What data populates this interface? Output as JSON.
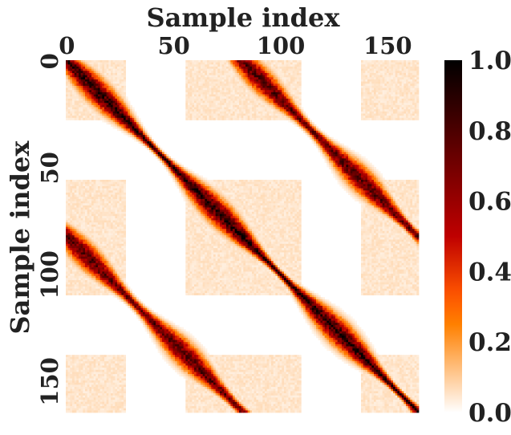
{
  "chart_data": {
    "type": "heatmap",
    "title": "",
    "xlabel": "Sample index",
    "ylabel": "Sample index",
    "x_axis_position": "top",
    "x_range": [
      0,
      165
    ],
    "y_range": [
      0,
      165
    ],
    "y_inverted": true,
    "x_ticks": [
      0,
      50,
      100,
      150
    ],
    "y_ticks": [
      0,
      50,
      100,
      150
    ],
    "n_samples": 165,
    "value_range": [
      0,
      1
    ],
    "colormap": "gist_heat_r",
    "colorbar": {
      "position": "right",
      "ticks": [
        "0.0",
        "0.2",
        "0.4",
        "0.6",
        "0.8",
        "1.0"
      ],
      "tick_values": [
        0,
        0.2,
        0.4,
        0.6,
        0.8,
        1.0
      ]
    },
    "structure": {
      "main_diagonal_value": 1.0,
      "off_diagonal_offset_samples": 82,
      "off_diagonal_peak": 0.75,
      "block_boundaries": [
        0,
        28,
        56,
        82,
        110,
        138,
        165
      ],
      "background_block_value": 0.05
    },
    "grid": false,
    "legend": "none"
  },
  "colors": {
    "background": "#ffffff",
    "text": "#222222"
  }
}
